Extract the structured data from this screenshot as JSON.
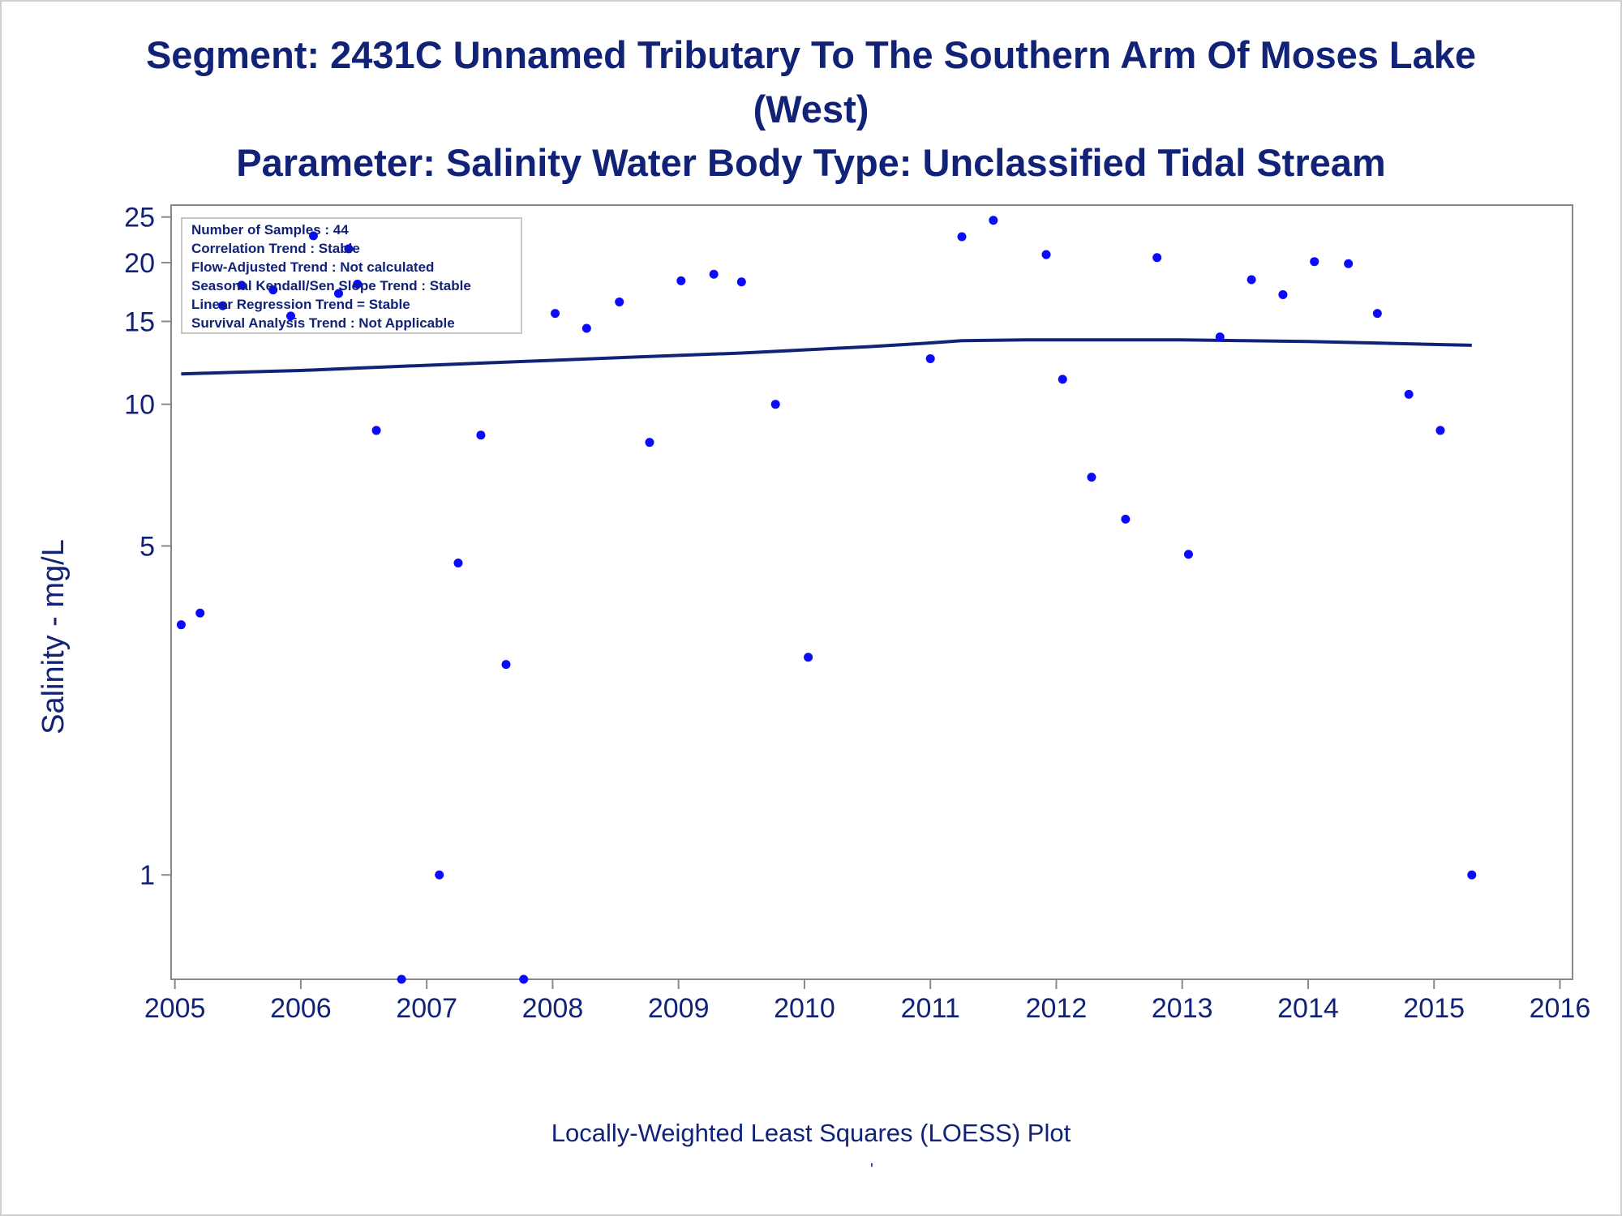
{
  "titles": {
    "line1": "Segment: 2431C  Unnamed Tributary To The Southern Arm Of Moses Lake",
    "line2": "(West)",
    "line3": "Parameter: Salinity   Water Body Type: Unclassified Tidal Stream"
  },
  "footnote": "Locally-Weighted Least Squares (LOESS) Plot",
  "footnote_mark": "'",
  "info_box": [
    "Number of Samples : 44",
    "Correlation Trend : Stable",
    "Flow-Adjusted Trend : Not calculated",
    "Seasonal Kendall/Sen Slope Trend : Stable",
    "Linear Regression Trend = Stable",
    "Survival Analysis Trend : Not Applicable"
  ],
  "colors": {
    "points": "#0a0aff",
    "loess_line": "#112277",
    "text": "#112277",
    "axis": "#888888"
  },
  "chart_data": {
    "type": "scatter",
    "ylabel": "Salinity - mg/L",
    "xlabel": "",
    "y_scale": "log",
    "ylim": [
      0.6,
      26.5
    ],
    "xlim": [
      2004.97,
      2016.1
    ],
    "x_ticks": [
      2005,
      2006,
      2007,
      2008,
      2009,
      2010,
      2011,
      2012,
      2013,
      2014,
      2015,
      2016
    ],
    "y_ticks": [
      1,
      5,
      10,
      15,
      20,
      25
    ],
    "grid": false,
    "series": [
      {
        "type": "scatter",
        "x": [
          2005.05,
          2005.2,
          2005.38,
          2005.53,
          2005.78,
          2005.92,
          2006.1,
          2006.3,
          2006.38,
          2006.45,
          2006.6,
          2006.8,
          2007.1,
          2007.25,
          2007.43,
          2007.63,
          2007.77,
          2008.02,
          2008.27,
          2008.53,
          2008.77,
          2009.02,
          2009.28,
          2009.5,
          2009.77,
          2010.03,
          2011.0,
          2011.25,
          2011.5,
          2011.92,
          2012.05,
          2012.28,
          2012.55,
          2012.8,
          2013.05,
          2013.3,
          2013.55,
          2013.8,
          2014.05,
          2014.32,
          2014.55,
          2014.8,
          2015.05,
          2015.3
        ],
        "y": [
          3.4,
          3.6,
          16.2,
          17.9,
          17.5,
          15.4,
          22.8,
          17.2,
          21.4,
          18.0,
          8.8,
          0.6,
          1.0,
          4.6,
          8.6,
          2.8,
          0.6,
          15.6,
          14.5,
          16.5,
          8.3,
          18.3,
          18.9,
          18.2,
          10.0,
          2.9,
          12.5,
          22.7,
          24.6,
          20.8,
          11.3,
          7.0,
          5.7,
          20.5,
          4.8,
          13.9,
          18.4,
          17.1,
          20.1,
          19.9,
          15.6,
          10.5,
          8.8,
          1.0
        ]
      },
      {
        "type": "line",
        "x": [
          2005.05,
          2005.5,
          2006.0,
          2006.5,
          2007.0,
          2007.5,
          2008.0,
          2008.5,
          2009.0,
          2009.5,
          2010.0,
          2010.5,
          2011.0,
          2011.25,
          2011.75,
          2012.5,
          2013.0,
          2013.5,
          2014.0,
          2014.5,
          2015.0,
          2015.3
        ],
        "y": [
          11.6,
          11.7,
          11.8,
          11.95,
          12.1,
          12.25,
          12.4,
          12.55,
          12.7,
          12.85,
          13.05,
          13.25,
          13.5,
          13.65,
          13.7,
          13.7,
          13.7,
          13.65,
          13.6,
          13.5,
          13.4,
          13.35
        ]
      }
    ]
  }
}
